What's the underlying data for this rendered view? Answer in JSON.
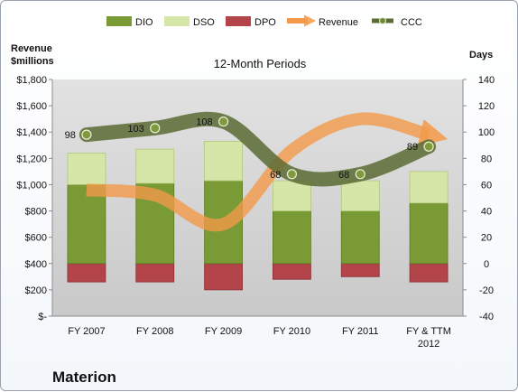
{
  "company": "Materion",
  "chart_data": {
    "type": "bar",
    "title": "12-Month Periods",
    "left_axis_label": [
      "Revenue",
      "$millions"
    ],
    "right_axis_label": "Days",
    "categories": [
      [
        "FY 2007"
      ],
      [
        "FY 2008"
      ],
      [
        "FY 2009"
      ],
      [
        "FY 2010"
      ],
      [
        "FY 2011"
      ],
      [
        "FY & TTM",
        "2012"
      ]
    ],
    "left_axis": {
      "min": 0,
      "max": 1800,
      "step": 200,
      "tick_labels": [
        "$-",
        "$200",
        "$400",
        "$600",
        "$800",
        "$1,000",
        "$1,200",
        "$1,400",
        "$1,600",
        "$1,800"
      ]
    },
    "right_axis": {
      "min": -40,
      "max": 140,
      "step": 20,
      "tick_labels": [
        "-40",
        "-20",
        "0",
        "20",
        "40",
        "60",
        "80",
        "100",
        "120",
        "140"
      ]
    },
    "series": [
      {
        "name": "DIO",
        "kind": "stacked-bar",
        "axis": "right",
        "color": "#7a9a36",
        "values": [
          60,
          61,
          63,
          40,
          40,
          46
        ]
      },
      {
        "name": "DSO",
        "kind": "stacked-bar",
        "axis": "right",
        "color": "#d6e6a8",
        "values": [
          24,
          26,
          30,
          23,
          23,
          24
        ]
      },
      {
        "name": "DPO",
        "kind": "negative-bar",
        "axis": "right",
        "color": "#b3444a",
        "values": [
          -14,
          -14,
          -20,
          -12,
          -10,
          -14
        ]
      },
      {
        "name": "Revenue",
        "kind": "line",
        "axis": "left",
        "color": "#f39a4a",
        "values": [
          960,
          920,
          700,
          1260,
          1500,
          1380
        ]
      },
      {
        "name": "CCC",
        "kind": "line",
        "axis": "right",
        "color": "#5b6b34",
        "values": [
          98,
          103,
          108,
          68,
          68,
          89
        ]
      }
    ],
    "data_labels": [
      "98",
      "103",
      "108",
      "68",
      "68",
      "89"
    ],
    "legend_position": "top",
    "grid": false
  }
}
